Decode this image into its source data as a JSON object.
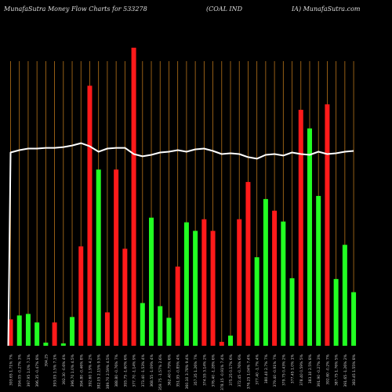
{
  "header": {
    "left": "MunafaSutra  Money Flow  Charts for 533278",
    "middle": "(COAL  IND",
    "right": "IA) MunafaSutra.com"
  },
  "colors": {
    "background": "#000000",
    "grid": "#b8741a",
    "up": "#22ff22",
    "down": "#ff1a1a",
    "line": "#ffffff"
  },
  "chart_data": {
    "type": "bar",
    "title": "",
    "bars": [
      {
        "label": "393.65 1.71% 7%",
        "value": 34,
        "color": "red"
      },
      {
        "label": "394.05 -0.27% 3%",
        "value": 39,
        "color": "green"
      },
      {
        "label": "397.95 1.0% 7.1%",
        "value": 41,
        "color": "green"
      },
      {
        "label": "396.35 -0.47% 8%",
        "value": 30,
        "color": "green"
      },
      {
        "label": "394.25",
        "value": 4,
        "color": "green"
      },
      {
        "label": "393.05 1.5% 7.1%",
        "value": 30,
        "color": "red"
      },
      {
        "label": "392.30 -0.6% 4%",
        "value": 3,
        "color": "green"
      },
      {
        "label": "396.70 1.0% 4.5%",
        "value": 37,
        "color": "green"
      },
      {
        "label": "394.80 -0.46% 8%",
        "value": 128,
        "color": "red"
      },
      {
        "label": "392.60 1.9% 4.2%",
        "value": 335,
        "color": "red"
      },
      {
        "label": "382.05 2.15% 9.5%",
        "value": 227,
        "color": "green"
      },
      {
        "label": "389.70 2.59% 4.5%",
        "value": 43,
        "color": "red"
      },
      {
        "label": "388.80 -0.76% 7%",
        "value": 227,
        "color": "red"
      },
      {
        "label": "393.75 -1.60% 6%",
        "value": 125,
        "color": "red"
      },
      {
        "label": "377.70 -1.14% 9%",
        "value": 384,
        "color": "red"
      },
      {
        "label": "373.40 -1.53% 4%",
        "value": 55,
        "color": "green"
      },
      {
        "label": "368.55 -1.09% 4%",
        "value": 165,
        "color": "green"
      },
      {
        "label": "359.75 -1.57% 2.6%",
        "value": 51,
        "color": "green"
      },
      {
        "label": "362.40 0.79% 6%",
        "value": 36,
        "color": "green"
      },
      {
        "label": "351.95 -0.85% 4%",
        "value": 102,
        "color": "red"
      },
      {
        "label": "360.10 3.78% 9.4%",
        "value": 159,
        "color": "green"
      },
      {
        "label": "357.35 1.26% 7%",
        "value": 148,
        "color": "green"
      },
      {
        "label": "374.55 3.14% 2%",
        "value": 163,
        "color": "red"
      },
      {
        "label": "376.40 -1.28% 6%",
        "value": 148,
        "color": "red"
      },
      {
        "label": "378.15 -0.91% 7.4%",
        "value": 5,
        "color": "red"
      },
      {
        "label": "375.25 0.17% 6%",
        "value": 13,
        "color": "green"
      },
      {
        "label": "372.45 -0.76% 6%",
        "value": 163,
        "color": "red"
      },
      {
        "label": "376.25 1.04% 7.4%",
        "value": 211,
        "color": "red"
      },
      {
        "label": "377.40 -1.7% 4%",
        "value": 114,
        "color": "green"
      },
      {
        "label": "380.40 2.7% 7%",
        "value": 189,
        "color": "green"
      },
      {
        "label": "379.40 -0.91% 7%",
        "value": 174,
        "color": "red"
      },
      {
        "label": "379.75 0.43% 2%",
        "value": 160,
        "color": "green"
      },
      {
        "label": "377.45 1.0% 1%",
        "value": 87,
        "color": "green"
      },
      {
        "label": "378.40 0.59% 5%",
        "value": 304,
        "color": "red"
      },
      {
        "label": "383.10 2.5% 8%",
        "value": 280,
        "color": "green"
      },
      {
        "label": "391.90 -0.27% 3%",
        "value": 193,
        "color": "green"
      },
      {
        "label": "392.60 -0.2% 7%",
        "value": 311,
        "color": "red"
      },
      {
        "label": "387.75 1.76% 5%",
        "value": 86,
        "color": "green"
      },
      {
        "label": "391.65 -1.26% 2%",
        "value": 130,
        "color": "green"
      },
      {
        "label": "383.45 1.55% 8%",
        "value": 69,
        "color": "green"
      }
    ],
    "line": [
      249,
      252,
      254,
      254,
      255,
      255,
      256,
      258,
      261,
      257,
      250,
      254,
      255,
      255,
      247,
      244,
      246,
      249,
      250,
      252,
      250,
      253,
      254,
      251,
      247,
      248,
      247,
      243,
      241,
      246,
      247,
      245,
      249,
      247,
      246,
      250,
      247,
      248,
      250,
      251
    ],
    "ylim": [
      0,
      400
    ]
  }
}
